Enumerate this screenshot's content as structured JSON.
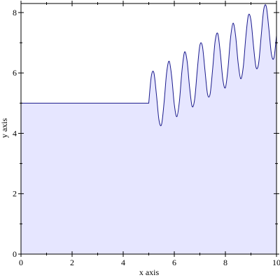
{
  "chart_data": {
    "type": "area",
    "xlabel": "x axis",
    "ylabel": "y axis",
    "color": "#1a1a8c",
    "fill": "#e6e6ff",
    "x": [
      0,
      5,
      5.1,
      5.2,
      5.3,
      5.4,
      5.5,
      5.6,
      5.7,
      5.8,
      5.9,
      6,
      6.1,
      6.2,
      6.3,
      6.4,
      6.5,
      6.6,
      6.7,
      6.8,
      6.9,
      7,
      7.1,
      7.2,
      7.3,
      7.4,
      7.5,
      7.6,
      7.7,
      7.8,
      7.9,
      8,
      8.1,
      8.2,
      8.3,
      8.4,
      8.5,
      8.6,
      8.7,
      8.8,
      8.9,
      9,
      9.1,
      9.2,
      9.3,
      9.4,
      9.5,
      9.6,
      9.7,
      9.8,
      9.9,
      10
    ],
    "values": [
      5,
      5,
      5.891,
      6.009,
      5.291,
      4.443,
      4.291,
      5.021,
      6.007,
      6.389,
      5.862,
      4.956,
      4.55,
      5.063,
      6.07,
      6.691,
      6.4,
      5.512,
      4.889,
      5.149,
      6.1,
      6.913,
      6.887,
      6.091,
      5.304,
      5.294,
      6.118,
      7.063,
      7.306,
      6.671,
      5.786,
      5.512,
      6.146,
      7.151,
      7.65,
      7.229,
      6.322,
      5.808,
      6.206,
      7.196,
      7.914,
      7.745,
      6.891,
      6.183,
      6.318,
      7.218,
      8.101,
      8.202,
      7.474,
      6.632,
      6.496,
      7.238
    ],
    "xlim": [
      0,
      10
    ],
    "ylim": [
      0,
      8.3
    ],
    "xticks": [
      0,
      2,
      4,
      6,
      8,
      10
    ],
    "yticks": [
      0,
      2,
      4,
      6,
      8
    ]
  }
}
